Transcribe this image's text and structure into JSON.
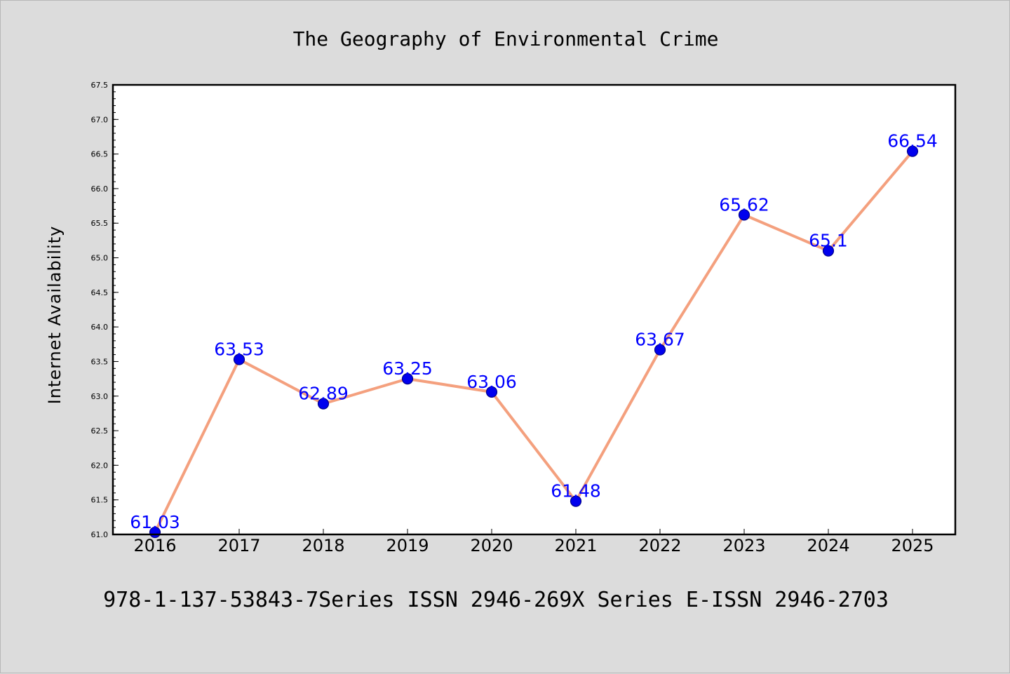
{
  "chart_data": {
    "type": "line",
    "title": "The Geography of Environmental Crime",
    "ylabel": "Internet Availability",
    "xlabel": "",
    "categories": [
      "2016",
      "2017",
      "2018",
      "2019",
      "2020",
      "2021",
      "2022",
      "2023",
      "2024",
      "2025"
    ],
    "values": [
      61.03,
      63.53,
      62.89,
      63.25,
      63.06,
      61.48,
      63.67,
      65.62,
      65.1,
      66.54
    ],
    "data_labels": [
      "61.03",
      "63.53",
      "62.89",
      "63.25",
      "63.06",
      "61.48",
      "63.67",
      "65.62",
      "65.1",
      "66.54"
    ],
    "ylim": [
      61.0,
      67.5
    ],
    "yticks": [
      "61.0",
      "61.5",
      "62.0",
      "62.5",
      "63.0",
      "63.5",
      "64.0",
      "64.5",
      "65.0",
      "65.5",
      "66.0",
      "66.5",
      "67.0",
      "67.5"
    ],
    "grid": false,
    "legend": "none",
    "colors": {
      "line": "#f4a07e",
      "marker": "#0000ee",
      "marker_edge": "#00008b",
      "label": "#0000ff",
      "plot_bg": "#ffffff",
      "figure_bg": "#dcdcdc"
    }
  },
  "footer": "978-1-137-53843-7Series ISSN 2946-269X Series E-ISSN 2946-2703"
}
